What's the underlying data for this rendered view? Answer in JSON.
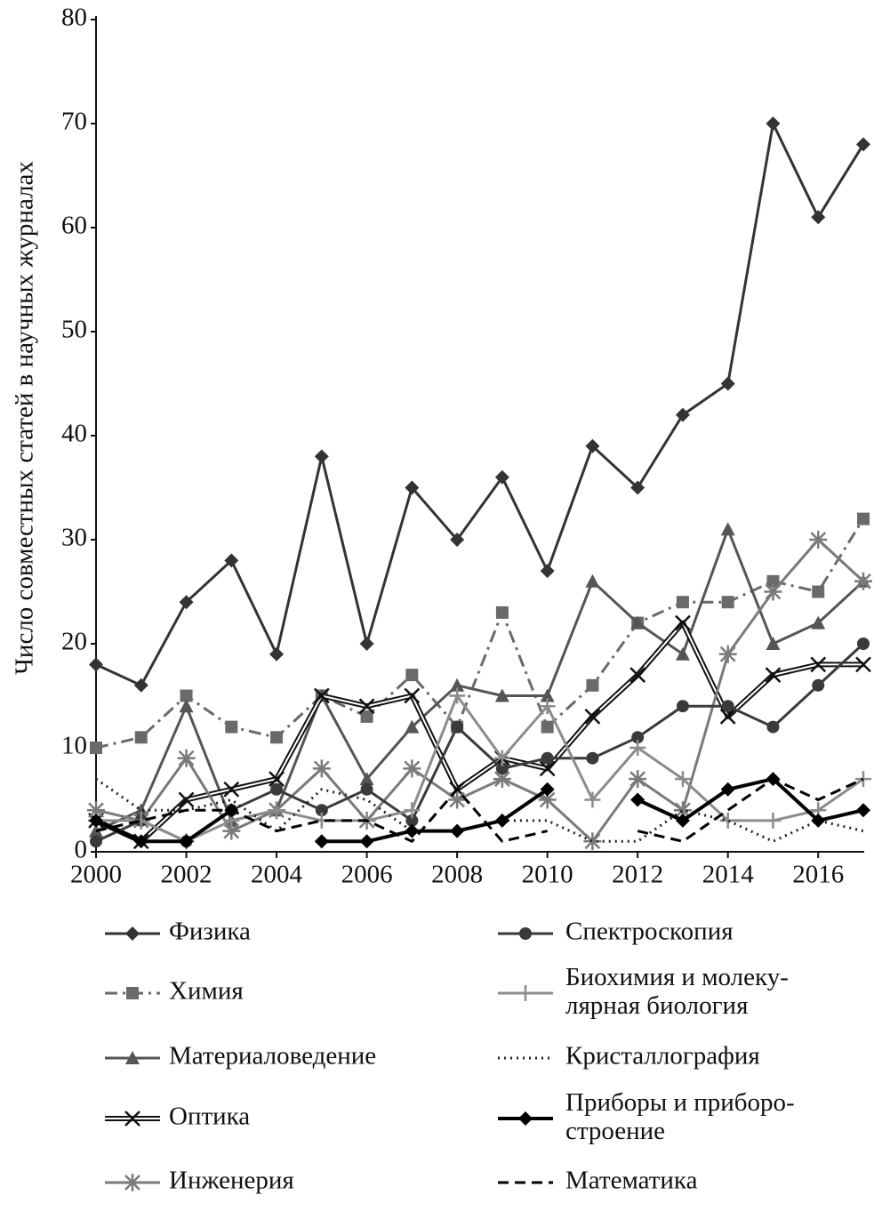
{
  "chart_data": {
    "type": "line",
    "y_label": "Число совместных статей в научных журналах",
    "x": [
      2000,
      2001,
      2002,
      2003,
      2004,
      2005,
      2006,
      2007,
      2008,
      2009,
      2010,
      2011,
      2012,
      2013,
      2014,
      2015,
      2016,
      2017
    ],
    "xlim": [
      2000,
      2017
    ],
    "xticks": [
      2000,
      2002,
      2004,
      2006,
      2008,
      2010,
      2012,
      2014,
      2016
    ],
    "ylim": [
      0,
      80
    ],
    "yticks": [
      0,
      10,
      20,
      30,
      40,
      50,
      60,
      70,
      80
    ],
    "series": [
      {
        "name": "Физика",
        "color": "#333333",
        "marker": "diamond",
        "line_style": "solid",
        "values": [
          18,
          16,
          24,
          28,
          19,
          38,
          20,
          35,
          30,
          36,
          27,
          39,
          35,
          42,
          45,
          70,
          61,
          68
        ]
      },
      {
        "name": "Химия",
        "color": "#6a6a6a",
        "marker": "square",
        "line_style": "dashdot",
        "values": [
          10,
          11,
          15,
          12,
          11,
          15,
          13,
          17,
          12,
          23,
          12,
          16,
          22,
          24,
          24,
          26,
          25,
          32
        ]
      },
      {
        "name": "Материаловедение",
        "color": "#555555",
        "marker": "triangle",
        "line_style": "solid",
        "values": [
          2,
          4,
          14,
          3,
          4,
          15,
          7,
          12,
          16,
          15,
          15,
          26,
          22,
          19,
          31,
          20,
          22,
          26
        ]
      },
      {
        "name": "Оптика",
        "color": "#111111",
        "marker": "x",
        "line_style": "double",
        "values": [
          3,
          1,
          5,
          6,
          7,
          15,
          14,
          15,
          6,
          9,
          8,
          13,
          17,
          22,
          13,
          17,
          18,
          18
        ]
      },
      {
        "name": "Инженерия",
        "color": "#7a7a7a",
        "marker": "asterisk",
        "line_style": "solid",
        "values": [
          4,
          3,
          9,
          2,
          4,
          8,
          3,
          8,
          5,
          7,
          5,
          1,
          7,
          4,
          19,
          25,
          30,
          26
        ]
      },
      {
        "name": "Спектроскопия",
        "color": "#3a3a3a",
        "marker": "circle",
        "line_style": "solid",
        "values": [
          1,
          3,
          1,
          4,
          6,
          4,
          6,
          3,
          12,
          8,
          9,
          9,
          11,
          14,
          14,
          12,
          16,
          20
        ]
      },
      {
        "name": "Биохимия и молеку-\nлярная биология",
        "color": "#8c8c8c",
        "marker": "plus",
        "line_style": "solid",
        "values": [
          3,
          3,
          1,
          3,
          4,
          3,
          3,
          4,
          15,
          9,
          14,
          5,
          10,
          7,
          3,
          3,
          4,
          7
        ]
      },
      {
        "name": "Кристаллография",
        "color": "#222222",
        "marker": "none",
        "line_style": "dotted",
        "values": [
          7,
          4,
          4,
          5,
          2,
          6,
          5,
          2,
          2,
          3,
          3,
          1,
          1,
          4,
          3,
          1,
          3,
          2
        ]
      },
      {
        "name": "Приборы и приборо-\nстроение",
        "color": "#000000",
        "marker": "diamond",
        "line_style": "thick",
        "values": [
          3,
          1,
          1,
          4,
          null,
          1,
          1,
          2,
          2,
          3,
          6,
          null,
          5,
          3,
          6,
          7,
          3,
          4
        ]
      },
      {
        "name": "Математика",
        "color": "#000000",
        "marker": "none",
        "line_style": "dashed",
        "values": [
          2,
          3,
          4,
          4,
          2,
          3,
          3,
          1,
          6,
          1,
          2,
          null,
          2,
          1,
          4,
          7,
          5,
          7
        ]
      }
    ]
  }
}
